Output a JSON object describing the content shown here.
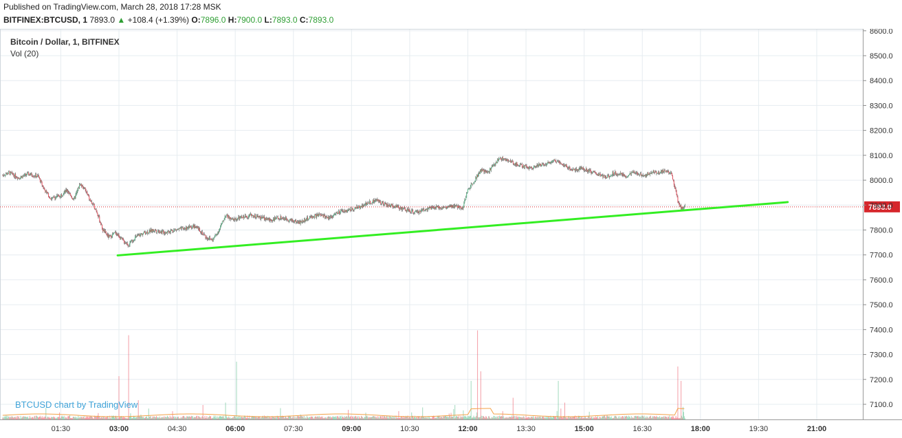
{
  "header": {
    "published": "Published on TradingView.com, March 28, 2018 17:28 MSK",
    "symbol_line": "BITFINEX:BTCUSD, 1",
    "last": "7893.0",
    "change": "+108.4 (+1.39%)",
    "open_label": "O:",
    "open": "7896.0",
    "high_label": "H:",
    "high": "7900.0",
    "low_label": "L:",
    "low": "7893.0",
    "close_label": "C:",
    "close": "7893.0"
  },
  "legend": {
    "title": "Bitcoin / Dollar, 1, BITFINEX",
    "volume": "Vol (20)"
  },
  "watermark": "BTCUSD chart by TradingView",
  "colors": {
    "up": "#53b987",
    "down": "#eb4d5c",
    "wick": "#555555",
    "trendline": "#33ee22",
    "price_line": "#d6262b",
    "vol_ma": "#f3a146",
    "grid": "#e6ecf0",
    "axis_text": "#333333",
    "header_up": "#2e9e33"
  },
  "chart_data": {
    "type": "candlestick",
    "title": "Bitcoin / Dollar, 1, BITFINEX",
    "interval": "1",
    "x_tick_labels": [
      "01:30",
      "03:00",
      "04:30",
      "06:00",
      "07:30",
      "09:00",
      "10:30",
      "12:00",
      "13:30",
      "15:00",
      "16:30",
      "18:00",
      "19:30",
      "21:00"
    ],
    "x_ticks_minutes": [
      90,
      180,
      270,
      360,
      450,
      540,
      630,
      720,
      810,
      900,
      990,
      1080,
      1170,
      1260
    ],
    "x_range_minutes": [
      0,
      1320
    ],
    "y_tick_labels": [
      "8600.0",
      "8500.0",
      "8400.0",
      "8300.0",
      "8200.0",
      "8100.0",
      "8000.0",
      "7900.0",
      "7800.0",
      "7700.0",
      "7600.0",
      "7500.0",
      "7400.0",
      "7300.0",
      "7200.0",
      "7100.0"
    ],
    "y_range": [
      7060,
      8600
    ],
    "grid": true,
    "last_price_label": "7893.0",
    "last_price": 7893.0,
    "price_path": [
      [
        0,
        8020
      ],
      [
        10,
        8030
      ],
      [
        25,
        8010
      ],
      [
        40,
        8025
      ],
      [
        55,
        8015
      ],
      [
        65,
        7960
      ],
      [
        75,
        7925
      ],
      [
        90,
        7940
      ],
      [
        100,
        7960
      ],
      [
        110,
        7920
      ],
      [
        120,
        7985
      ],
      [
        128,
        7960
      ],
      [
        135,
        7920
      ],
      [
        145,
        7880
      ],
      [
        155,
        7800
      ],
      [
        165,
        7770
      ],
      [
        175,
        7790
      ],
      [
        185,
        7760
      ],
      [
        195,
        7740
      ],
      [
        205,
        7770
      ],
      [
        220,
        7790
      ],
      [
        235,
        7800
      ],
      [
        250,
        7790
      ],
      [
        265,
        7800
      ],
      [
        280,
        7805
      ],
      [
        295,
        7815
      ],
      [
        305,
        7800
      ],
      [
        315,
        7770
      ],
      [
        325,
        7760
      ],
      [
        335,
        7800
      ],
      [
        345,
        7860
      ],
      [
        355,
        7840
      ],
      [
        370,
        7850
      ],
      [
        385,
        7860
      ],
      [
        400,
        7850
      ],
      [
        415,
        7840
      ],
      [
        430,
        7850
      ],
      [
        445,
        7840
      ],
      [
        460,
        7830
      ],
      [
        475,
        7850
      ],
      [
        490,
        7860
      ],
      [
        505,
        7850
      ],
      [
        520,
        7870
      ],
      [
        535,
        7880
      ],
      [
        550,
        7890
      ],
      [
        565,
        7910
      ],
      [
        580,
        7920
      ],
      [
        595,
        7900
      ],
      [
        610,
        7895
      ],
      [
        625,
        7880
      ],
      [
        640,
        7870
      ],
      [
        655,
        7885
      ],
      [
        670,
        7890
      ],
      [
        685,
        7890
      ],
      [
        700,
        7895
      ],
      [
        712,
        7890
      ],
      [
        720,
        7960
      ],
      [
        730,
        8000
      ],
      [
        740,
        8040
      ],
      [
        750,
        8030
      ],
      [
        760,
        8060
      ],
      [
        770,
        8090
      ],
      [
        780,
        8080
      ],
      [
        790,
        8070
      ],
      [
        800,
        8060
      ],
      [
        815,
        8050
      ],
      [
        830,
        8060
      ],
      [
        845,
        8070
      ],
      [
        855,
        8080
      ],
      [
        865,
        8070
      ],
      [
        875,
        8050
      ],
      [
        885,
        8040
      ],
      [
        895,
        8050
      ],
      [
        905,
        8040
      ],
      [
        915,
        8030
      ],
      [
        925,
        8020
      ],
      [
        935,
        8010
      ],
      [
        945,
        8030
      ],
      [
        955,
        8025
      ],
      [
        965,
        8015
      ],
      [
        975,
        8030
      ],
      [
        985,
        8025
      ],
      [
        995,
        8020
      ],
      [
        1005,
        8035
      ],
      [
        1015,
        8030
      ],
      [
        1025,
        8040
      ],
      [
        1035,
        8025
      ],
      [
        1040,
        7975
      ],
      [
        1045,
        7915
      ],
      [
        1050,
        7890
      ],
      [
        1056,
        7893
      ]
    ],
    "trendline": {
      "start": [
        178,
        7698
      ],
      "end": [
        1215,
        7912
      ]
    },
    "volume_spikes": [
      [
        180,
        180
      ],
      [
        195,
        350
      ],
      [
        210,
        80
      ],
      [
        310,
        60
      ],
      [
        345,
        70
      ],
      [
        362,
        240
      ],
      [
        535,
        40
      ],
      [
        650,
        50
      ],
      [
        700,
        60
      ],
      [
        725,
        160
      ],
      [
        735,
        370
      ],
      [
        740,
        200
      ],
      [
        790,
        90
      ],
      [
        860,
        160
      ],
      [
        870,
        70
      ],
      [
        1045,
        220
      ],
      [
        1050,
        160
      ]
    ]
  }
}
